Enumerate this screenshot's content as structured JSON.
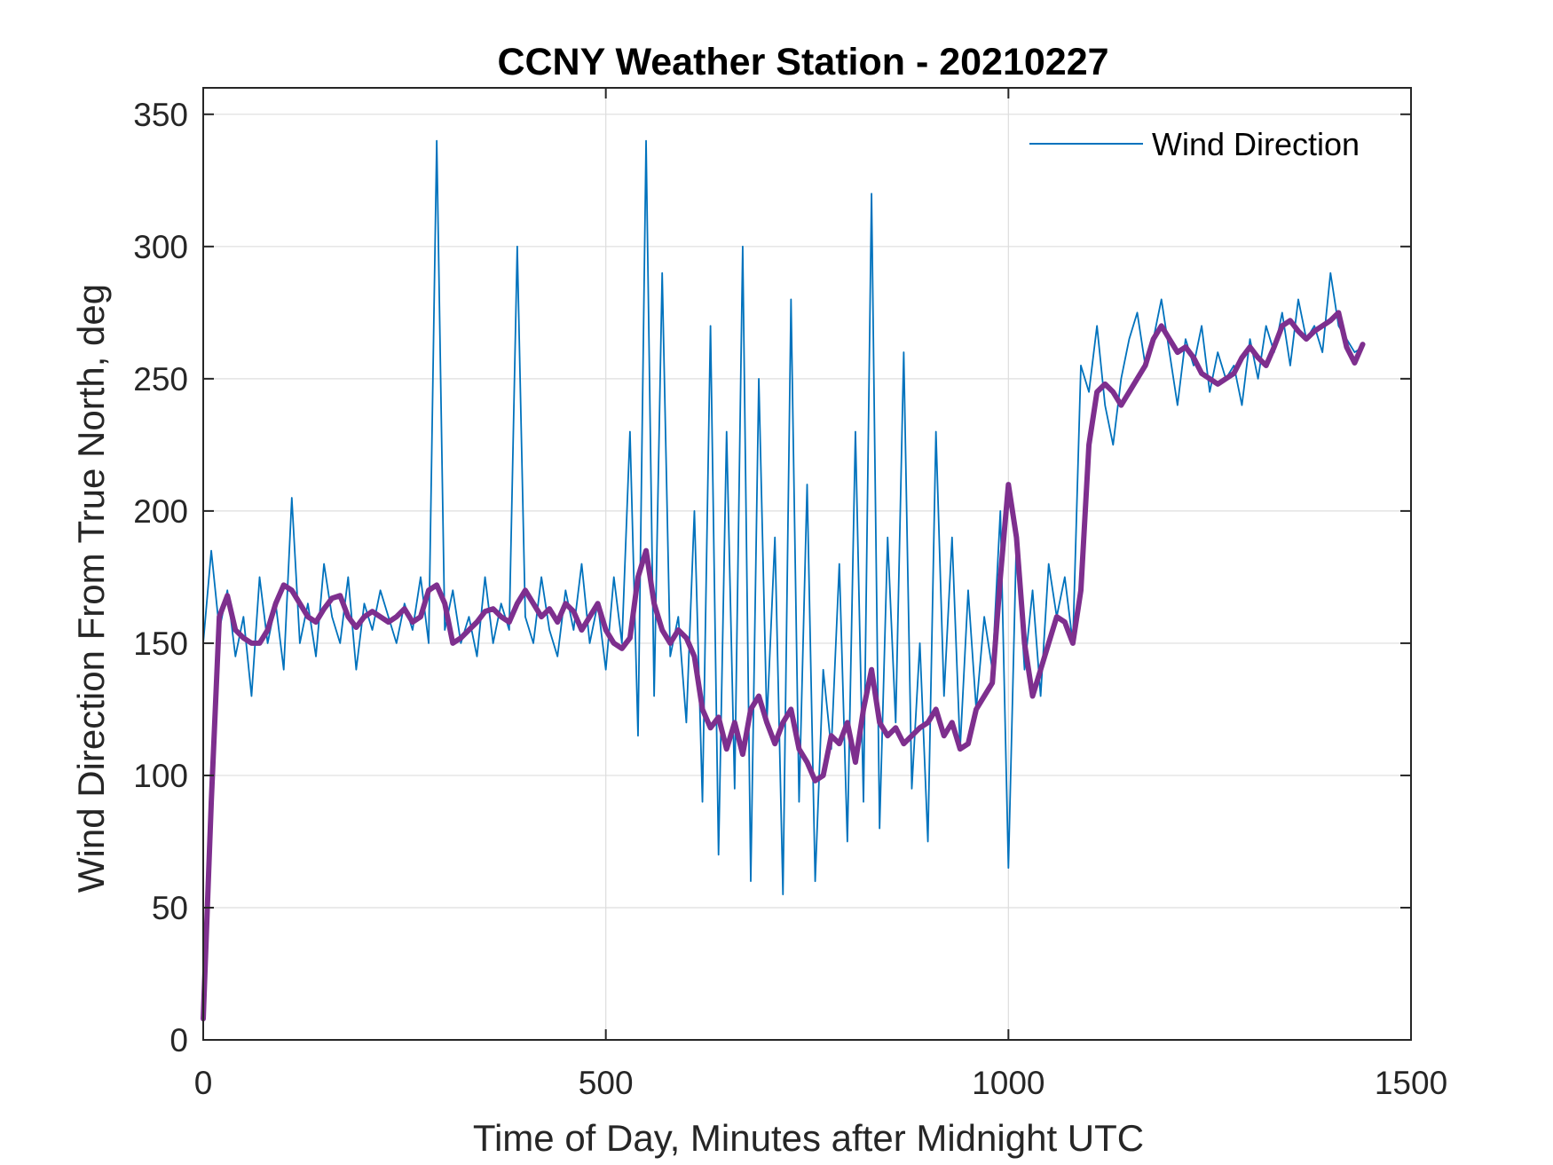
{
  "chart_data": {
    "type": "line",
    "title": "CCNY Weather Station - 20210227",
    "xlabel": "Time of Day, Minutes after Midnight UTC",
    "ylabel": "Wind Direction From True North, deg",
    "xlim": [
      0,
      1500
    ],
    "ylim": [
      0,
      360
    ],
    "xticks": [
      0,
      500,
      1000,
      1500
    ],
    "yticks": [
      0,
      50,
      100,
      150,
      200,
      250,
      300,
      350
    ],
    "grid": true,
    "legend": {
      "position": "top-right",
      "entries": [
        "Wind Direction"
      ]
    },
    "series": [
      {
        "name": "Wind Direction",
        "color": "#0072BD",
        "style": "thin-noisy",
        "x": [
          0,
          10,
          20,
          30,
          40,
          50,
          60,
          70,
          80,
          90,
          100,
          110,
          120,
          130,
          140,
          150,
          160,
          170,
          180,
          190,
          200,
          210,
          220,
          230,
          240,
          250,
          260,
          270,
          280,
          290,
          300,
          310,
          320,
          330,
          340,
          350,
          360,
          370,
          380,
          390,
          400,
          410,
          420,
          430,
          440,
          450,
          460,
          470,
          480,
          490,
          500,
          510,
          520,
          530,
          540,
          550,
          560,
          570,
          580,
          590,
          600,
          610,
          620,
          630,
          640,
          650,
          660,
          670,
          680,
          690,
          700,
          710,
          720,
          730,
          740,
          750,
          760,
          770,
          780,
          790,
          800,
          810,
          820,
          830,
          840,
          850,
          860,
          870,
          880,
          890,
          900,
          910,
          920,
          930,
          940,
          950,
          960,
          970,
          980,
          990,
          1000,
          1010,
          1020,
          1030,
          1040,
          1050,
          1060,
          1070,
          1080,
          1090,
          1100,
          1110,
          1120,
          1130,
          1140,
          1150,
          1160,
          1170,
          1180,
          1190,
          1200,
          1210,
          1220,
          1230,
          1240,
          1250,
          1260,
          1270,
          1280,
          1290,
          1300,
          1310,
          1320,
          1330,
          1340,
          1350,
          1360,
          1370,
          1380,
          1390,
          1400,
          1410,
          1420,
          1430,
          1440
        ],
        "values": [
          150,
          185,
          155,
          170,
          145,
          160,
          130,
          175,
          150,
          165,
          140,
          205,
          150,
          165,
          145,
          180,
          160,
          150,
          175,
          140,
          165,
          155,
          170,
          160,
          150,
          165,
          155,
          175,
          150,
          340,
          155,
          170,
          150,
          160,
          145,
          175,
          150,
          165,
          155,
          300,
          160,
          150,
          175,
          155,
          145,
          170,
          155,
          180,
          150,
          165,
          140,
          175,
          150,
          230,
          115,
          340,
          130,
          290,
          145,
          160,
          120,
          200,
          90,
          270,
          70,
          230,
          95,
          300,
          60,
          250,
          120,
          190,
          55,
          280,
          90,
          210,
          60,
          140,
          110,
          180,
          75,
          230,
          90,
          320,
          80,
          190,
          120,
          260,
          95,
          150,
          75,
          230,
          130,
          190,
          110,
          170,
          125,
          160,
          140,
          200,
          65,
          190,
          140,
          170,
          130,
          180,
          160,
          175,
          150,
          255,
          245,
          270,
          240,
          225,
          250,
          265,
          275,
          255,
          265,
          280,
          260,
          240,
          265,
          255,
          270,
          245,
          260,
          250,
          255,
          240,
          265,
          250,
          270,
          260,
          275,
          255,
          280,
          265,
          270,
          260,
          290,
          270,
          265,
          260,
          262
        ]
      },
      {
        "name": "",
        "color": "#7E2F8E",
        "style": "thick-smooth",
        "x": [
          0,
          10,
          20,
          30,
          40,
          50,
          60,
          70,
          80,
          90,
          100,
          110,
          120,
          130,
          140,
          150,
          160,
          170,
          180,
          190,
          200,
          210,
          220,
          230,
          240,
          250,
          260,
          270,
          280,
          290,
          300,
          310,
          320,
          330,
          340,
          350,
          360,
          370,
          380,
          390,
          400,
          410,
          420,
          430,
          440,
          450,
          460,
          470,
          480,
          490,
          500,
          510,
          520,
          530,
          540,
          550,
          560,
          570,
          580,
          590,
          600,
          610,
          620,
          630,
          640,
          650,
          660,
          670,
          680,
          690,
          700,
          710,
          720,
          730,
          740,
          750,
          760,
          770,
          780,
          790,
          800,
          810,
          820,
          830,
          840,
          850,
          860,
          870,
          880,
          890,
          900,
          910,
          920,
          930,
          940,
          950,
          960,
          970,
          980,
          990,
          1000,
          1010,
          1020,
          1030,
          1040,
          1050,
          1060,
          1070,
          1080,
          1090,
          1100,
          1110,
          1120,
          1130,
          1140,
          1150,
          1160,
          1170,
          1180,
          1190,
          1200,
          1210,
          1220,
          1230,
          1240,
          1250,
          1260,
          1270,
          1280,
          1290,
          1300,
          1310,
          1320,
          1330,
          1340,
          1350,
          1360,
          1370,
          1380,
          1390,
          1400,
          1410,
          1420,
          1430,
          1440
        ],
        "values": [
          8,
          90,
          160,
          168,
          155,
          152,
          150,
          150,
          155,
          165,
          172,
          170,
          165,
          160,
          158,
          163,
          167,
          168,
          160,
          156,
          160,
          162,
          160,
          158,
          160,
          163,
          158,
          160,
          170,
          172,
          165,
          150,
          152,
          155,
          158,
          162,
          163,
          160,
          158,
          165,
          170,
          165,
          160,
          163,
          158,
          165,
          162,
          155,
          160,
          165,
          155,
          150,
          148,
          152,
          175,
          185,
          165,
          155,
          150,
          155,
          152,
          145,
          125,
          118,
          122,
          110,
          120,
          108,
          125,
          130,
          120,
          112,
          120,
          125,
          110,
          105,
          98,
          100,
          115,
          112,
          120,
          105,
          125,
          140,
          120,
          115,
          118,
          112,
          115,
          118,
          120,
          125,
          115,
          120,
          110,
          112,
          125,
          130,
          135,
          175,
          210,
          190,
          150,
          130,
          140,
          150,
          160,
          158,
          150,
          170,
          225,
          245,
          248,
          245,
          240,
          245,
          250,
          255,
          265,
          270,
          265,
          260,
          262,
          258,
          252,
          250,
          248,
          250,
          252,
          258,
          262,
          258,
          255,
          262,
          270,
          272,
          268,
          265,
          268,
          270,
          272,
          275,
          262,
          256,
          263
        ]
      }
    ]
  }
}
